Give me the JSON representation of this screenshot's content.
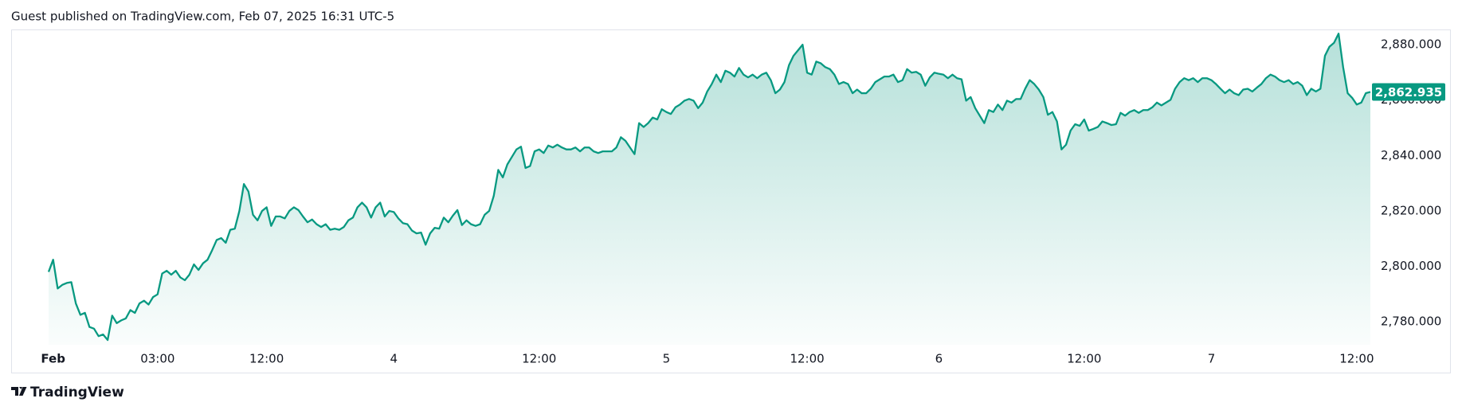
{
  "header": "Guest published on TradingView.com, Feb 07, 2025 16:31 UTC-5",
  "footer": "TradingView",
  "chart_data": {
    "type": "area",
    "color": "#089981",
    "grid": false,
    "ylim": [
      2771.7,
      2885.5
    ],
    "yticks": [
      {
        "value": 2780,
        "label": "2,780.000"
      },
      {
        "value": 2800,
        "label": "2,800.000"
      },
      {
        "value": 2820,
        "label": "2,820.000"
      },
      {
        "value": 2840,
        "label": "2,840.000"
      },
      {
        "value": 2860,
        "label": "2,860.000"
      },
      {
        "value": 2880,
        "label": "2,880.000"
      }
    ],
    "last_price": {
      "value": 2862.935,
      "label": "2,862.935"
    },
    "categories": [
      null,
      "Feb",
      null,
      null,
      null,
      null,
      null,
      null,
      null,
      null,
      null,
      null,
      null,
      null,
      null,
      null,
      null,
      null,
      null,
      null,
      null,
      null,
      null,
      null,
      "03:00",
      null,
      null,
      null,
      null,
      null,
      null,
      null,
      null,
      null,
      null,
      null,
      null,
      null,
      null,
      null,
      null,
      null,
      null,
      null,
      null,
      null,
      null,
      null,
      "12:00",
      null,
      null,
      null,
      null,
      null,
      null,
      null,
      null,
      null,
      null,
      null,
      null,
      null,
      null,
      null,
      null,
      null,
      null,
      null,
      null,
      null,
      null,
      null,
      null,
      null,
      null,
      null,
      "4",
      null,
      null,
      null,
      null,
      null,
      null,
      null,
      null,
      null,
      null,
      null,
      null,
      null,
      null,
      null,
      null,
      null,
      null,
      null,
      null,
      null,
      null,
      null,
      null,
      null,
      null,
      null,
      null,
      null,
      null,
      null,
      "12:00",
      null,
      null,
      null,
      null,
      null,
      null,
      null,
      null,
      null,
      null,
      null,
      null,
      null,
      null,
      null,
      null,
      null,
      null,
      null,
      null,
      null,
      null,
      null,
      null,
      null,
      null,
      null,
      "5",
      null,
      null,
      null,
      null,
      null,
      null,
      null,
      null,
      null,
      null,
      null,
      null,
      null,
      null,
      null,
      null,
      null,
      null,
      null,
      null,
      null,
      null,
      null,
      null,
      null,
      null,
      null,
      null,
      null,
      null,
      "12:00",
      null,
      null,
      null,
      null,
      null,
      null,
      null,
      null,
      null,
      null,
      null,
      null,
      null,
      null,
      null,
      null,
      null,
      null,
      null,
      null,
      null,
      null,
      null,
      null,
      null,
      null,
      null,
      null,
      "6",
      null,
      null,
      null,
      null,
      null,
      null,
      null,
      null,
      null,
      null,
      null,
      null,
      null,
      null,
      null,
      null,
      null,
      null,
      null,
      null,
      null,
      null,
      null,
      null,
      null,
      null,
      null,
      null,
      null,
      null,
      null,
      "12:00",
      null,
      null,
      null,
      null,
      null,
      null,
      null,
      null,
      null,
      null,
      null,
      null,
      null,
      null,
      null,
      null,
      null,
      null,
      null,
      null,
      null,
      null,
      null,
      null,
      null,
      null,
      null,
      "7",
      null,
      null,
      null,
      null,
      null,
      null,
      null,
      null,
      null,
      null,
      null,
      null,
      null,
      null,
      null,
      null,
      null,
      null,
      null,
      null,
      null,
      null,
      null,
      null,
      null,
      null,
      null,
      null,
      null,
      null,
      null,
      "12:00",
      null,
      null,
      null
    ],
    "values": [
      2798.0,
      2802.4,
      2792.0,
      2793.3,
      2794.0,
      2794.3,
      2786.6,
      2782.5,
      2783.2,
      2778.1,
      2777.5,
      2774.8,
      2775.4,
      2773.4,
      2782.2,
      2779.5,
      2780.5,
      2781.2,
      2784.2,
      2783.2,
      2786.6,
      2787.6,
      2786.2,
      2788.9,
      2789.9,
      2797.4,
      2798.4,
      2797.0,
      2798.4,
      2796.0,
      2795.0,
      2797.0,
      2800.7,
      2798.7,
      2801.1,
      2802.4,
      2805.8,
      2809.5,
      2810.2,
      2808.5,
      2813.2,
      2813.6,
      2820.0,
      2829.7,
      2827.0,
      2818.6,
      2816.6,
      2820.0,
      2821.3,
      2814.6,
      2818.0,
      2818.0,
      2817.3,
      2820.0,
      2821.3,
      2820.3,
      2818.0,
      2815.9,
      2816.9,
      2815.2,
      2814.2,
      2815.2,
      2813.2,
      2813.6,
      2813.2,
      2814.2,
      2816.6,
      2817.6,
      2821.3,
      2823.0,
      2821.3,
      2817.6,
      2821.3,
      2823.0,
      2818.0,
      2820.0,
      2819.6,
      2817.3,
      2815.6,
      2815.2,
      2812.9,
      2811.9,
      2812.2,
      2807.8,
      2811.9,
      2813.9,
      2813.6,
      2817.6,
      2815.9,
      2818.3,
      2820.3,
      2814.9,
      2816.6,
      2815.2,
      2814.6,
      2815.2,
      2818.6,
      2820.0,
      2825.4,
      2834.8,
      2832.1,
      2836.8,
      2839.5,
      2842.2,
      2843.2,
      2835.5,
      2836.2,
      2841.5,
      2842.2,
      2840.9,
      2843.6,
      2842.9,
      2843.9,
      2842.9,
      2842.2,
      2842.2,
      2842.9,
      2841.5,
      2842.9,
      2842.9,
      2841.5,
      2840.9,
      2841.5,
      2841.5,
      2841.5,
      2842.9,
      2846.6,
      2845.3,
      2842.9,
      2840.5,
      2851.7,
      2850.3,
      2851.7,
      2853.7,
      2853.0,
      2856.7,
      2855.7,
      2855.0,
      2857.4,
      2858.4,
      2859.8,
      2860.4,
      2859.8,
      2857.1,
      2859.1,
      2863.1,
      2865.8,
      2869.2,
      2866.5,
      2870.6,
      2869.9,
      2868.5,
      2871.6,
      2869.2,
      2868.2,
      2869.2,
      2867.9,
      2869.2,
      2869.9,
      2867.2,
      2862.5,
      2863.8,
      2866.5,
      2872.6,
      2876.0,
      2878.0,
      2880.0,
      2869.9,
      2869.2,
      2873.9,
      2873.3,
      2871.9,
      2871.2,
      2869.2,
      2865.8,
      2866.5,
      2865.8,
      2862.5,
      2863.8,
      2862.5,
      2862.5,
      2864.1,
      2866.5,
      2867.5,
      2868.5,
      2868.5,
      2869.2,
      2866.5,
      2867.2,
      2871.2,
      2869.9,
      2870.2,
      2869.2,
      2865.2,
      2868.2,
      2869.9,
      2869.5,
      2869.2,
      2867.9,
      2869.2,
      2867.9,
      2867.5,
      2859.8,
      2861.1,
      2857.1,
      2854.4,
      2851.7,
      2856.4,
      2855.7,
      2858.4,
      2856.4,
      2859.8,
      2859.1,
      2860.4,
      2860.4,
      2864.1,
      2867.2,
      2865.8,
      2863.8,
      2861.1,
      2854.7,
      2855.7,
      2852.3,
      2842.2,
      2843.9,
      2849.0,
      2851.3,
      2850.7,
      2853.0,
      2849.0,
      2849.6,
      2850.3,
      2852.3,
      2851.7,
      2851.0,
      2851.3,
      2855.4,
      2854.4,
      2855.7,
      2856.4,
      2855.4,
      2856.4,
      2856.4,
      2857.4,
      2859.1,
      2858.1,
      2859.1,
      2860.1,
      2864.1,
      2866.5,
      2867.9,
      2867.2,
      2867.9,
      2866.5,
      2867.9,
      2867.9,
      2867.2,
      2865.8,
      2864.1,
      2862.5,
      2863.8,
      2862.5,
      2861.8,
      2863.8,
      2864.1,
      2863.1,
      2864.5,
      2865.8,
      2867.9,
      2869.2,
      2868.5,
      2867.2,
      2866.5,
      2867.2,
      2865.8,
      2866.5,
      2865.2,
      2861.8,
      2864.1,
      2863.1,
      2864.1,
      2876.0,
      2879.3,
      2880.7,
      2884.0,
      2871.9,
      2862.5,
      2860.8,
      2858.4,
      2859.1,
      2862.5,
      2862.935
    ]
  }
}
